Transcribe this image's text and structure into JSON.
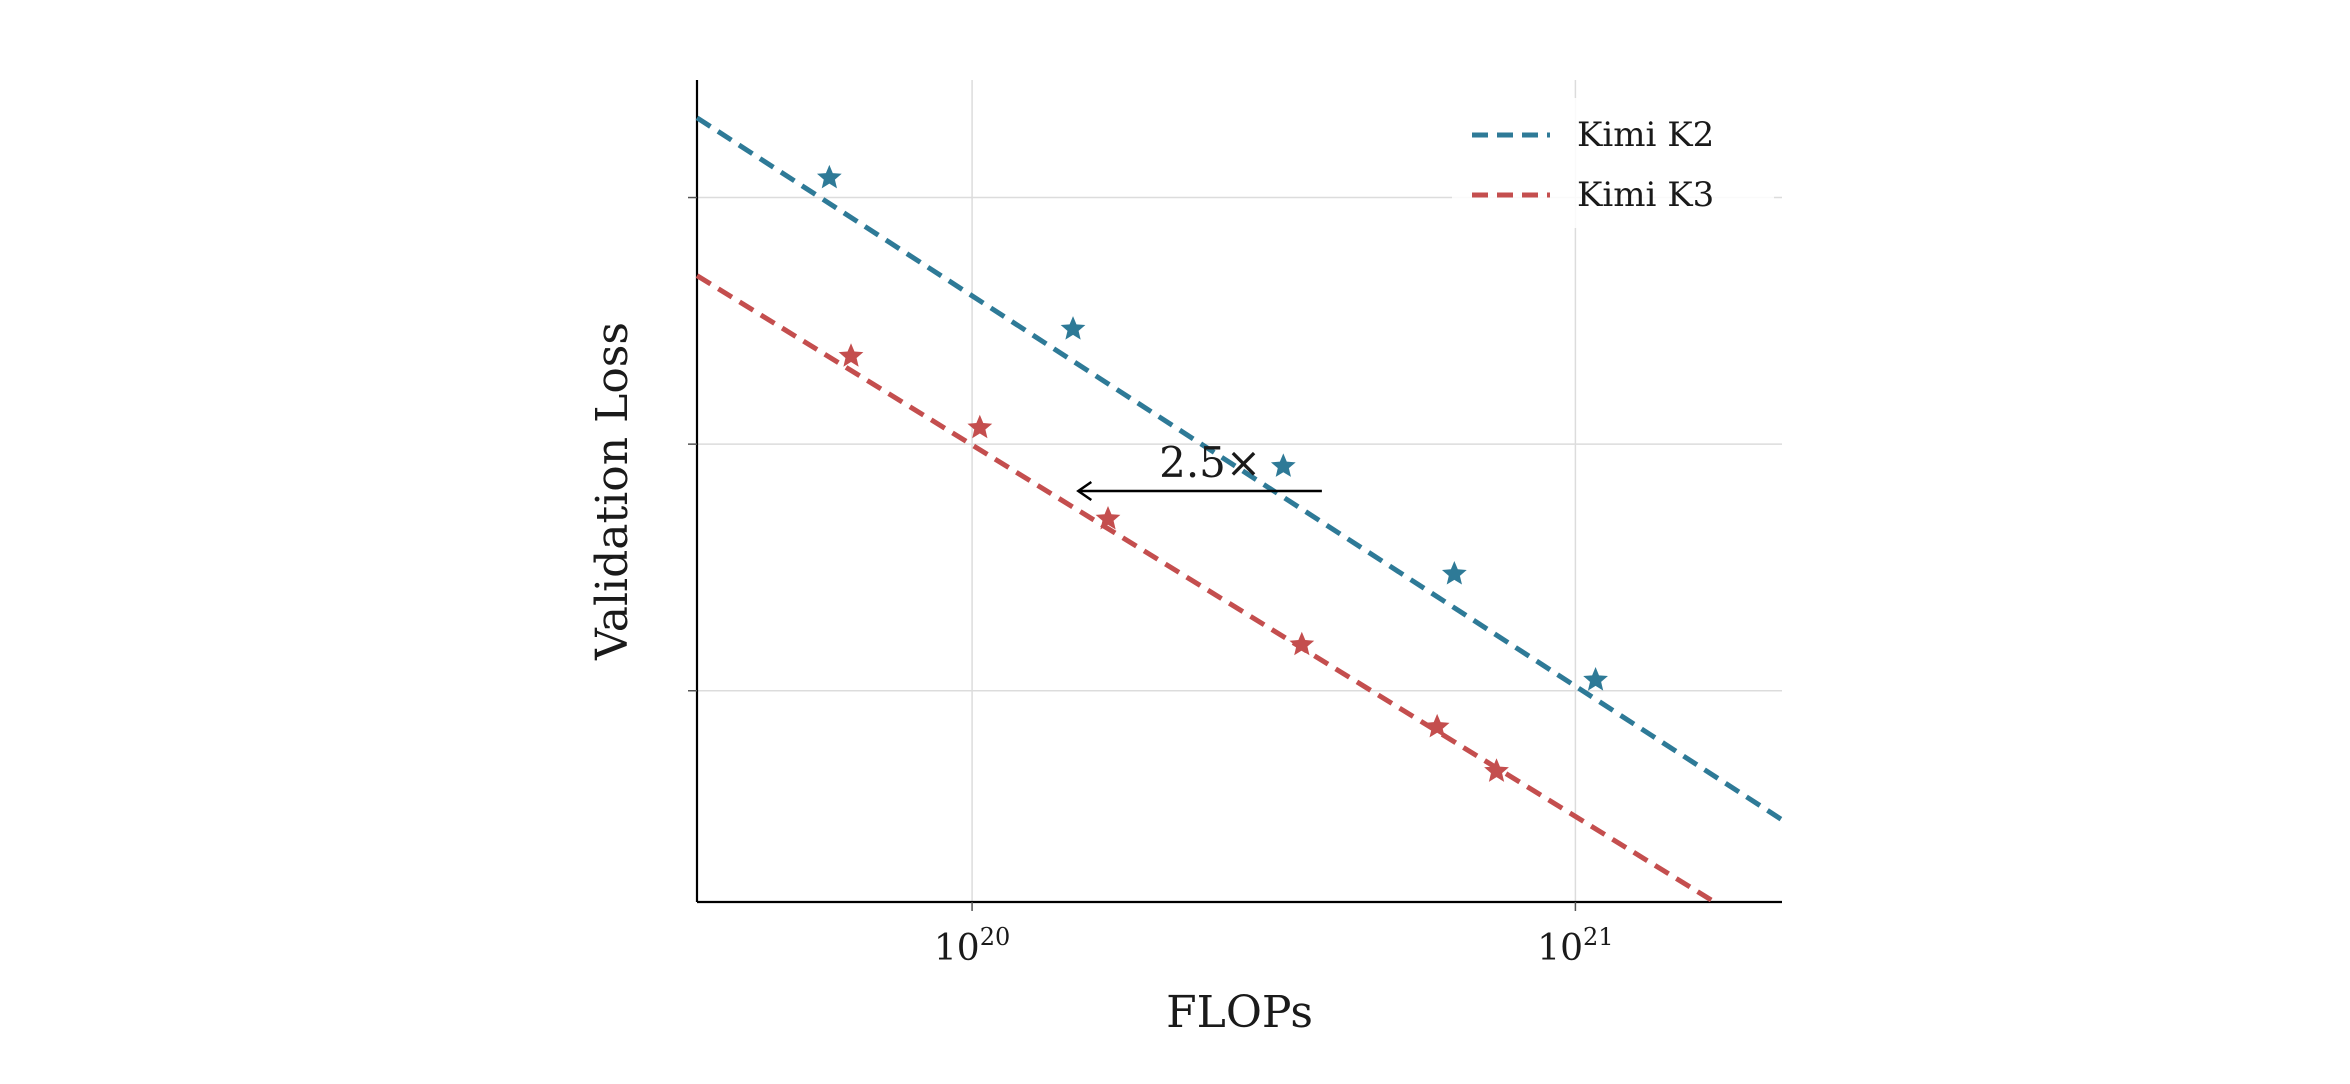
{
  "chart_data": {
    "type": "line",
    "xlabel": "FLOPs",
    "ylabel": "Validation Loss",
    "x_scale": "log",
    "xlim": [
      3.5e+19,
      2.2e+21
    ],
    "ylim": [
      0,
      1
    ],
    "x_ticks": [
      {
        "value": 1e+20,
        "base": "10",
        "exp": "20"
      },
      {
        "value": 1e+21,
        "base": "10",
        "exp": "21"
      }
    ],
    "y_ticks": [
      0.257,
      0.557,
      0.857
    ],
    "grid": true,
    "legend_position": "top-right",
    "marker": "star",
    "line_style": "dashed",
    "series": [
      {
        "name": "Kimi K2",
        "color": "#2e7a97",
        "fit": {
          "x0": 3.5e+19,
          "y0": 0.954,
          "x1": 2.2e+21,
          "y1": 0.1
        },
        "points": [
          {
            "x": 5.8e+19,
            "y": 0.881
          },
          {
            "x": 1.47e+20,
            "y": 0.697
          },
          {
            "x": 3.28e+20,
            "y": 0.53
          },
          {
            "x": 6.3e+20,
            "y": 0.399
          },
          {
            "x": 1.08e+21,
            "y": 0.27
          }
        ]
      },
      {
        "name": "Kimi K3",
        "color": "#c44e4e",
        "fit": {
          "x0": 3.5e+19,
          "y0": 0.762,
          "x1": 1.7e+21,
          "y1": 0.0
        },
        "points": [
          {
            "x": 6.3e+19,
            "y": 0.664
          },
          {
            "x": 1.03e+20,
            "y": 0.577
          },
          {
            "x": 1.68e+20,
            "y": 0.466
          },
          {
            "x": 3.52e+20,
            "y": 0.313
          },
          {
            "x": 5.9e+20,
            "y": 0.213
          },
          {
            "x": 7.4e+20,
            "y": 0.159
          }
        ]
      }
    ],
    "annotation": {
      "text": "2.5×",
      "arrow_from": {
        "x": 3.8e+20,
        "y": 0.5
      },
      "arrow_to": {
        "x": 1.5e+20,
        "y": 0.5
      }
    }
  }
}
